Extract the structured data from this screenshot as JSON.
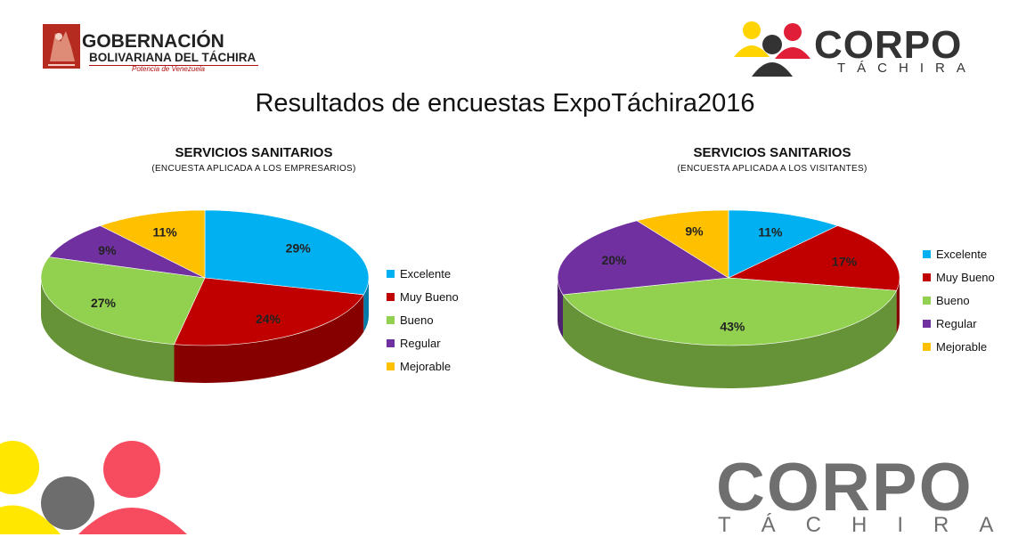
{
  "header": {
    "gob_line1": "GOBERNACIÓN",
    "gob_line2": "BOLIVARIANA DEL TÁCHIRA",
    "gob_line3": "Potencia de Venezuela",
    "corpo": "CORPO",
    "tachira": "TÁCHIRA"
  },
  "page_title": "Resultados de encuestas ExpoTáchira2016",
  "footer": {
    "corpo": "CORPO",
    "tachira": "TÁCHIRA"
  },
  "colors": {
    "Excelente": "#00b0f0",
    "Muy Bueno": "#c00000",
    "Bueno": "#92d050",
    "Regular": "#7030a0",
    "Mejorable": "#ffc000"
  },
  "chart_data": [
    {
      "type": "pie",
      "title": "SERVICIOS SANITARIOS",
      "subtitle": "(ENCUESTA  APLICADA A LOS EMPRESARIOS)",
      "categories": [
        "Excelente",
        "Muy Bueno",
        "Bueno",
        "Regular",
        "Mejorable"
      ],
      "values": [
        29,
        24,
        27,
        9,
        11
      ],
      "labels": [
        "29%",
        "24%",
        "27%",
        "9%",
        "11%"
      ],
      "legend": "right"
    },
    {
      "type": "pie",
      "title": "SERVICIOS SANITARIOS",
      "subtitle": "(ENCUESTA  APLICADA A LOS VISITANTES)",
      "categories": [
        "Excelente",
        "Muy Bueno",
        "Bueno",
        "Regular",
        "Mejorable"
      ],
      "values": [
        11,
        17,
        43,
        20,
        9
      ],
      "labels": [
        "11%",
        "17%",
        "43%",
        "20%",
        "9%"
      ],
      "legend": "right"
    }
  ]
}
